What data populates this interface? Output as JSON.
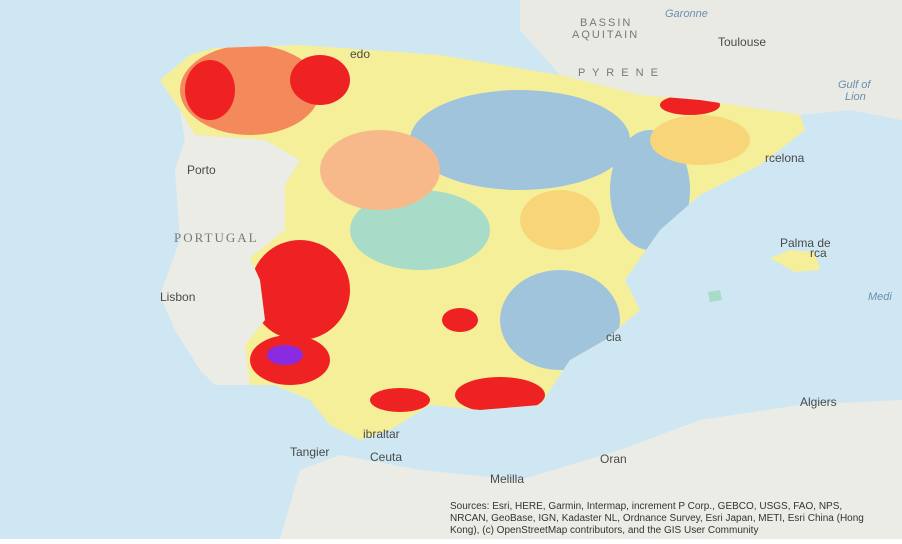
{
  "map": {
    "labels": {
      "bassin": "BASSIN",
      "aquitain": "AQUITAIN",
      "garonne": "Garonne",
      "toulouse": "Toulouse",
      "pyrenees": "P Y R E N E",
      "gulf1": "Gulf of",
      "gulf2": "Lion",
      "oviedo": "edo",
      "porto": "Porto",
      "portugal": "PORTUGAL",
      "lisbon": "Lisbon",
      "barcelona": "rcelona",
      "palma1": "Palma de",
      "palma2": "rca",
      "medi": "Medi",
      "valencia": "cia",
      "algiers": "Algiers",
      "gibraltar": "ibraltar",
      "tangier": "Tangier",
      "ceuta": "Ceuta",
      "melilla": "Melilla",
      "oran": "Oran"
    },
    "attribution": [
      "Sources: Esri, HERE, Garmin, Intermap, increment P Corp., GEBCO, USGS, FAO, NPS,",
      "NRCAN, GeoBase, IGN, Kadaster NL, Ordnance Survey, Esri Japan, METI, Esri China (Hong",
      "Kong), (c) OpenStreetMap contributors, and the GIS User Community"
    ]
  }
}
